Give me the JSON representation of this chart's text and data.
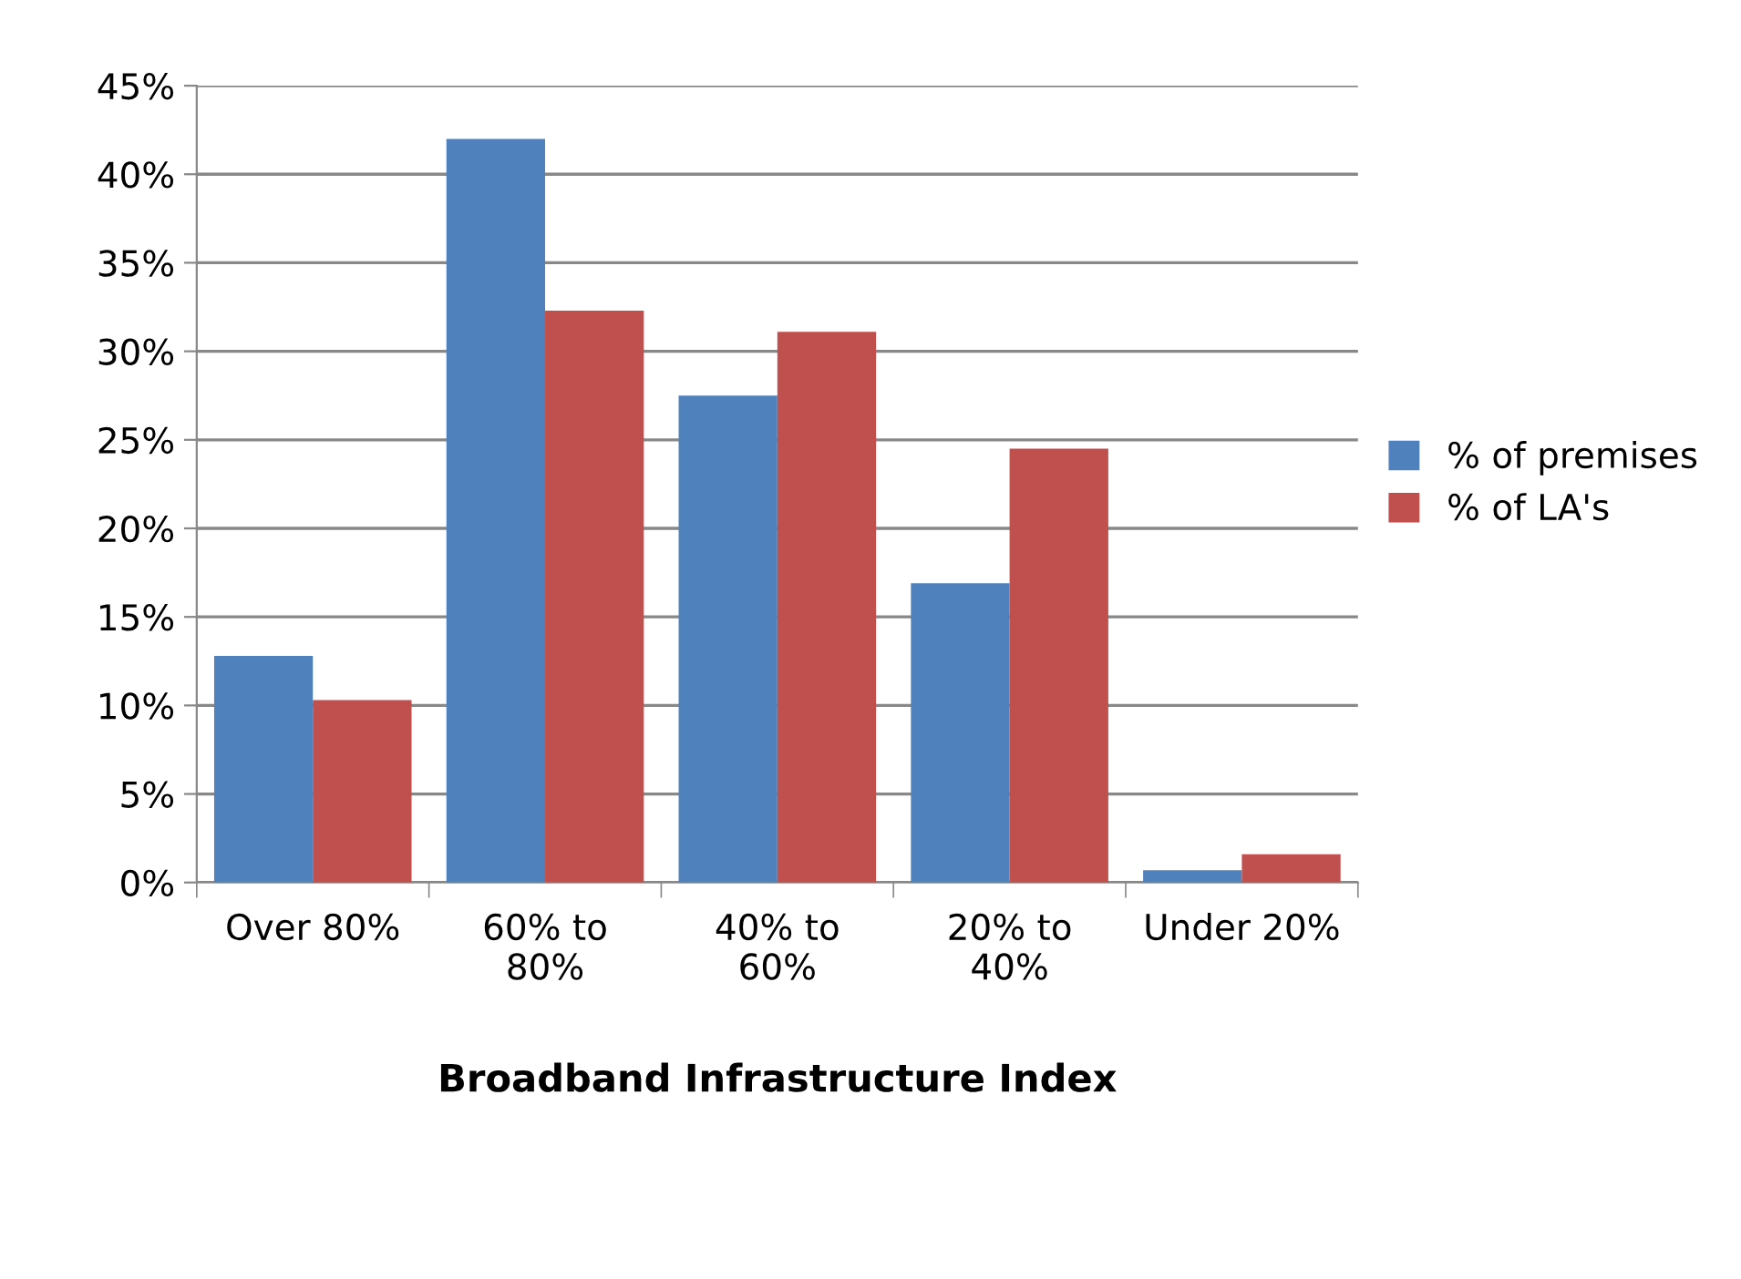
{
  "chart_data": {
    "type": "bar",
    "xlabel": "Broadband Infrastructure Index",
    "categories": [
      "Over 80%",
      "60% to\n80%",
      "40% to\n60%",
      "20% to\n40%",
      "Under 20%"
    ],
    "series": [
      {
        "name": "% of premises",
        "color": "#4f81bd",
        "values": [
          12.8,
          42.0,
          27.5,
          16.9,
          0.7
        ]
      },
      {
        "name": "% of LA's",
        "color": "#c0504d",
        "values": [
          10.3,
          32.3,
          31.1,
          24.5,
          1.6
        ]
      }
    ],
    "ylim": [
      0,
      45
    ],
    "yticks": [
      {
        "value": 0,
        "label": "0%"
      },
      {
        "value": 5,
        "label": "5%"
      },
      {
        "value": 10,
        "label": "10%"
      },
      {
        "value": 15,
        "label": "15%"
      },
      {
        "value": 20,
        "label": "20%"
      },
      {
        "value": 25,
        "label": "25%"
      },
      {
        "value": 30,
        "label": "30%"
      },
      {
        "value": 35,
        "label": "35%"
      },
      {
        "value": 40,
        "label": "40%"
      },
      {
        "value": 45,
        "label": "45%"
      }
    ],
    "grid": "y",
    "legend": "right"
  }
}
